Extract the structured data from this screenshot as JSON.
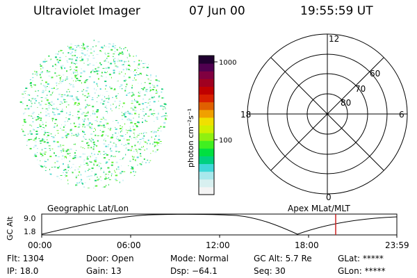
{
  "header": {
    "instrument": "Ultraviolet Imager",
    "date": "07 Jun 00",
    "time": "19:55:59 UT"
  },
  "colorbar": {
    "label": "photon cm⁻²s⁻¹",
    "ticks": [
      "1000",
      "100"
    ],
    "colors": [
      "#f4f4f4",
      "#d8f0f0",
      "#a8e8ec",
      "#40d8d8",
      "#00d080",
      "#00e040",
      "#40f020",
      "#90f010",
      "#d0f000",
      "#f0e000",
      "#f0a000",
      "#e06000",
      "#d82000",
      "#c00000",
      "#a00020",
      "#800040",
      "#500050",
      "#200030"
    ]
  },
  "polar": {
    "lat_labels": [
      "60",
      "70",
      "80"
    ],
    "mlt_labels": {
      "top": "12",
      "left": "18",
      "right": "6",
      "bottom": "0"
    }
  },
  "timeline": {
    "left_label": "Geographic Lat/Lon",
    "right_label": "Apex MLat/MLT",
    "axis_label": "GC Alt",
    "y_ticks": [
      "9.0",
      "1.8"
    ],
    "x_ticks": [
      "00:00",
      "06:00",
      "12:00",
      "18:00",
      "23:59"
    ],
    "marker_color": "#cc2020"
  },
  "status": {
    "flt": "Flt: 1304",
    "door": "Door: Open",
    "mode": "Mode: Normal",
    "gc_alt": "GC Alt: 5.7 Re",
    "glat": "GLat: *****",
    "ip": "IP: 18.0",
    "gain": "Gain: 13",
    "dsp": "Dsp: −64.1",
    "seq": "Seq: 30",
    "glon": "GLon: *****"
  }
}
